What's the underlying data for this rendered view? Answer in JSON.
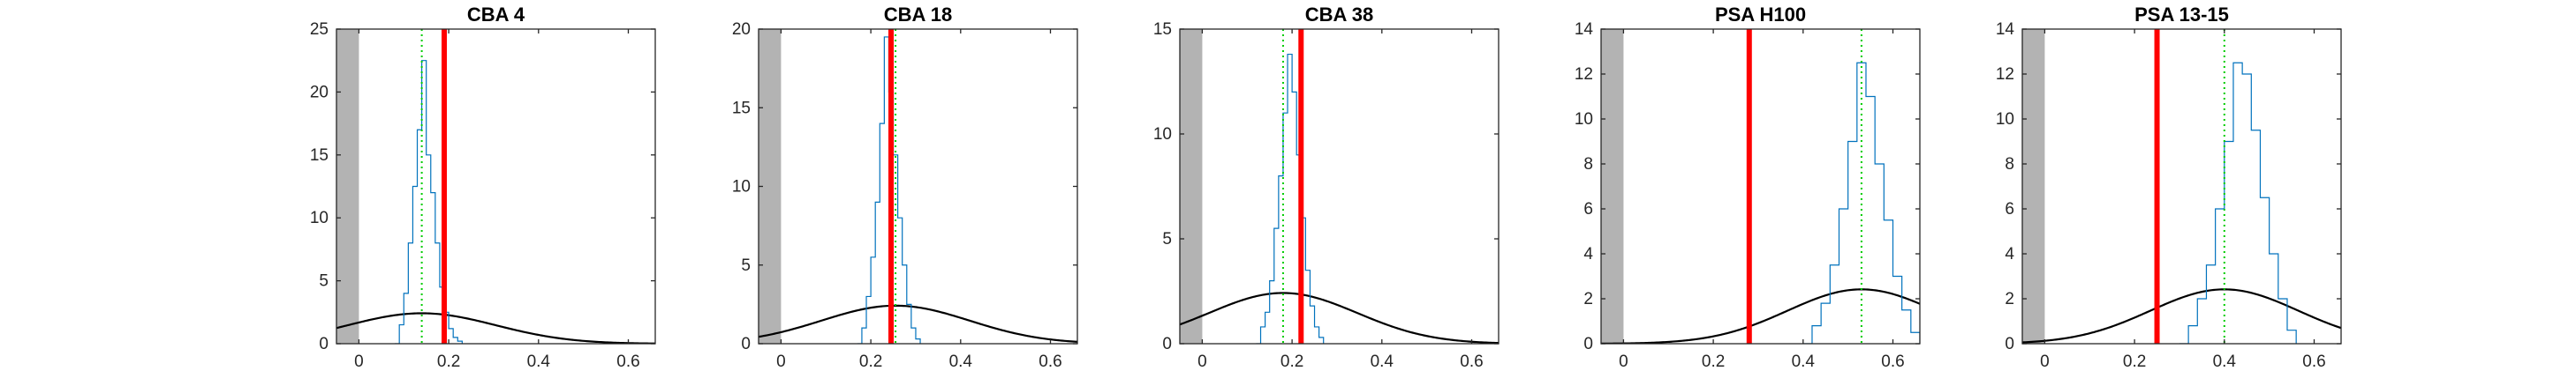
{
  "chart_data": [
    {
      "type": "line",
      "title": "CBA 4",
      "xlim": [
        -0.05,
        0.66
      ],
      "ylim": [
        0,
        25
      ],
      "xticks": [
        0,
        0.2,
        0.4,
        0.6
      ],
      "yticks": [
        0,
        5,
        10,
        15,
        20,
        25
      ],
      "grid": false,
      "shaded_region": {
        "x": [
          -0.05,
          0
        ],
        "color": "#b3b3b3"
      },
      "red_line_x": 0.19,
      "green_dotted_x": 0.14,
      "normal_curve": {
        "mean": 0.14,
        "sd": 0.165,
        "color": "#000000"
      },
      "histogram": {
        "color": "#0072bd",
        "x": [
          0.08,
          0.09,
          0.1,
          0.11,
          0.12,
          0.13,
          0.14,
          0.15,
          0.16,
          0.17,
          0.18,
          0.19,
          0.2,
          0.21,
          0.22,
          0.23
        ],
        "y": [
          0,
          1.5,
          4,
          8,
          12.5,
          17,
          22.5,
          15,
          12,
          8,
          4.5,
          2.5,
          1.2,
          0.5,
          0.2,
          0
        ]
      }
    },
    {
      "type": "line",
      "title": "CBA 18",
      "xlim": [
        -0.05,
        0.66
      ],
      "ylim": [
        0,
        20
      ],
      "xticks": [
        0,
        0.2,
        0.4,
        0.6
      ],
      "yticks": [
        0,
        5,
        10,
        15,
        20
      ],
      "grid": false,
      "shaded_region": {
        "x": [
          -0.05,
          0
        ],
        "color": "#b3b3b3"
      },
      "red_line_x": 0.245,
      "green_dotted_x": 0.255,
      "normal_curve": {
        "mean": 0.255,
        "sd": 0.165,
        "color": "#000000"
      },
      "histogram": {
        "color": "#0072bd",
        "x": [
          0.17,
          0.18,
          0.19,
          0.2,
          0.21,
          0.22,
          0.23,
          0.24,
          0.25,
          0.26,
          0.27,
          0.28,
          0.29,
          0.3,
          0.31
        ],
        "y": [
          0,
          1,
          3,
          5.5,
          9,
          14,
          19.5,
          16,
          12,
          8,
          5,
          2.5,
          1,
          0.3,
          0
        ]
      }
    },
    {
      "type": "line",
      "title": "CBA 38",
      "xlim": [
        -0.05,
        0.66
      ],
      "ylim": [
        0,
        15
      ],
      "xticks": [
        0,
        0.2,
        0.4,
        0.6
      ],
      "yticks": [
        0,
        5,
        10,
        15
      ],
      "grid": false,
      "shaded_region": {
        "x": [
          -0.05,
          0
        ],
        "color": "#b3b3b3"
      },
      "red_line_x": 0.22,
      "green_dotted_x": 0.18,
      "normal_curve": {
        "mean": 0.18,
        "sd": 0.165,
        "color": "#000000"
      },
      "histogram": {
        "color": "#0072bd",
        "x": [
          0.12,
          0.13,
          0.14,
          0.15,
          0.16,
          0.17,
          0.18,
          0.19,
          0.2,
          0.21,
          0.22,
          0.23,
          0.24,
          0.25,
          0.26,
          0.27
        ],
        "y": [
          0,
          0.8,
          1.5,
          3,
          5.5,
          8,
          11,
          13.8,
          12,
          9,
          6,
          3.5,
          1.8,
          0.8,
          0.3,
          0
        ]
      }
    },
    {
      "type": "line",
      "title": "PSA H100",
      "xlim": [
        -0.05,
        0.66
      ],
      "ylim": [
        0,
        14
      ],
      "xticks": [
        0,
        0.2,
        0.4,
        0.6
      ],
      "yticks": [
        0,
        2,
        4,
        6,
        8,
        10,
        12,
        14
      ],
      "grid": false,
      "shaded_region": {
        "x": [
          -0.05,
          0
        ],
        "color": "#b3b3b3"
      },
      "red_line_x": 0.28,
      "green_dotted_x": 0.53,
      "normal_curve": {
        "mean": 0.53,
        "sd": 0.165,
        "color": "#000000"
      },
      "histogram": {
        "color": "#0072bd",
        "x": [
          0.4,
          0.42,
          0.44,
          0.46,
          0.48,
          0.5,
          0.52,
          0.54,
          0.56,
          0.58,
          0.6,
          0.62,
          0.64,
          0.66
        ],
        "y": [
          0,
          0.8,
          1.8,
          3.5,
          6,
          9,
          12.5,
          11,
          8,
          5.5,
          3,
          1.5,
          0.5,
          0
        ]
      }
    },
    {
      "type": "line",
      "title": "PSA 13-15",
      "xlim": [
        -0.05,
        0.66
      ],
      "ylim": [
        0,
        14
      ],
      "xticks": [
        0,
        0.2,
        0.4,
        0.6
      ],
      "yticks": [
        0,
        2,
        4,
        6,
        8,
        10,
        12,
        14
      ],
      "grid": false,
      "shaded_region": {
        "x": [
          -0.05,
          0
        ],
        "color": "#b3b3b3"
      },
      "red_line_x": 0.25,
      "green_dotted_x": 0.4,
      "normal_curve": {
        "mean": 0.4,
        "sd": 0.165,
        "color": "#000000"
      },
      "histogram": {
        "color": "#0072bd",
        "x": [
          0.3,
          0.32,
          0.34,
          0.36,
          0.38,
          0.4,
          0.42,
          0.44,
          0.46,
          0.48,
          0.5,
          0.52,
          0.54,
          0.56
        ],
        "y": [
          0,
          0.8,
          2,
          3.5,
          6,
          9,
          12.5,
          12,
          9.5,
          6.5,
          4,
          2,
          0.6,
          0
        ]
      }
    }
  ]
}
